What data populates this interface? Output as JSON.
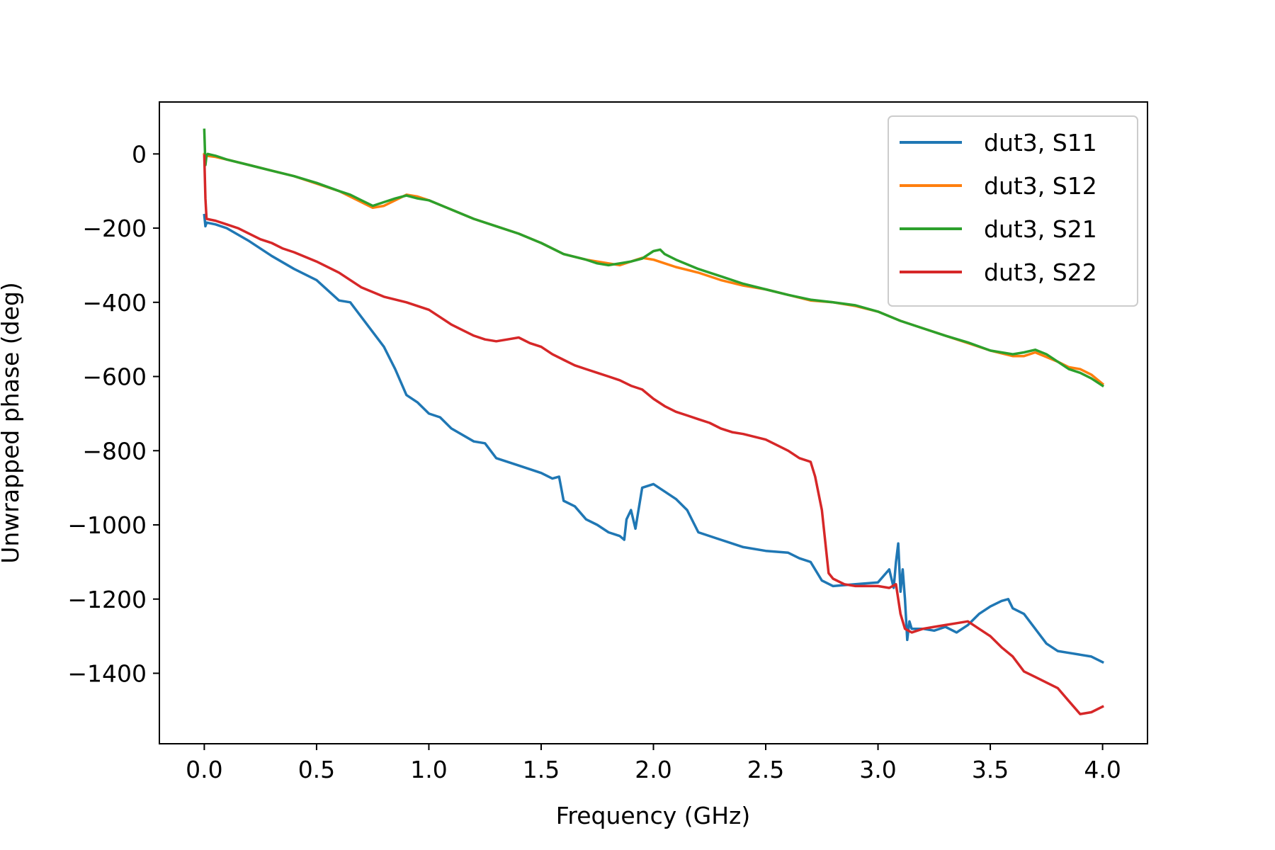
{
  "chart_data": {
    "type": "line",
    "title": "",
    "xlabel": "Frequency (GHz)",
    "ylabel": "Unwrapped phase (deg)",
    "xlim": [
      -0.2,
      4.2
    ],
    "ylim": [
      -1590,
      140
    ],
    "xticks": [
      0.0,
      0.5,
      1.0,
      1.5,
      2.0,
      2.5,
      3.0,
      3.5,
      4.0
    ],
    "xtick_labels": [
      "0.0",
      "0.5",
      "1.0",
      "1.5",
      "2.0",
      "2.5",
      "3.0",
      "3.5",
      "4.0"
    ],
    "yticks": [
      0,
      -200,
      -400,
      -600,
      -800,
      -1000,
      -1200,
      -1400
    ],
    "ytick_labels": [
      "0",
      "−200",
      "−400",
      "−600",
      "−800",
      "−1000",
      "−1200",
      "−1400"
    ],
    "legend_position": "top-right",
    "series": [
      {
        "name": "dut3, S11",
        "color": "#1f77b4",
        "x": [
          0.0,
          0.005,
          0.01,
          0.05,
          0.1,
          0.2,
          0.3,
          0.4,
          0.5,
          0.6,
          0.65,
          0.7,
          0.75,
          0.8,
          0.85,
          0.9,
          0.95,
          1.0,
          1.05,
          1.1,
          1.2,
          1.25,
          1.3,
          1.4,
          1.5,
          1.55,
          1.58,
          1.6,
          1.65,
          1.7,
          1.75,
          1.8,
          1.85,
          1.87,
          1.88,
          1.9,
          1.92,
          1.95,
          2.0,
          2.05,
          2.1,
          2.15,
          2.2,
          2.3,
          2.4,
          2.5,
          2.6,
          2.65,
          2.7,
          2.75,
          2.8,
          2.9,
          3.0,
          3.05,
          3.07,
          3.08,
          3.09,
          3.1,
          3.11,
          3.12,
          3.13,
          3.14,
          3.15,
          3.2,
          3.25,
          3.3,
          3.35,
          3.4,
          3.45,
          3.5,
          3.55,
          3.58,
          3.6,
          3.65,
          3.7,
          3.75,
          3.8,
          3.85,
          3.9,
          3.95,
          4.0
        ],
        "y": [
          -165,
          -195,
          -185,
          -190,
          -200,
          -235,
          -275,
          -310,
          -340,
          -395,
          -400,
          -440,
          -480,
          -520,
          -580,
          -650,
          -670,
          -700,
          -710,
          -740,
          -775,
          -780,
          -820,
          -840,
          -860,
          -875,
          -870,
          -935,
          -950,
          -985,
          -1000,
          -1020,
          -1030,
          -1040,
          -985,
          -960,
          -1010,
          -900,
          -890,
          -910,
          -930,
          -960,
          -1020,
          -1040,
          -1060,
          -1070,
          -1075,
          -1090,
          -1100,
          -1150,
          -1165,
          -1160,
          -1155,
          -1120,
          -1170,
          -1100,
          -1050,
          -1180,
          -1120,
          -1200,
          -1310,
          -1260,
          -1280,
          -1280,
          -1285,
          -1275,
          -1290,
          -1270,
          -1240,
          -1220,
          -1205,
          -1200,
          -1225,
          -1240,
          -1280,
          -1320,
          -1340,
          -1345,
          -1350,
          -1355,
          -1370
        ]
      },
      {
        "name": "dut3, S12",
        "color": "#ff7f0e",
        "x": [
          0.0,
          0.01,
          0.05,
          0.1,
          0.2,
          0.3,
          0.4,
          0.5,
          0.6,
          0.65,
          0.7,
          0.75,
          0.8,
          0.85,
          0.9,
          0.95,
          1.0,
          1.1,
          1.2,
          1.3,
          1.4,
          1.5,
          1.6,
          1.7,
          1.75,
          1.8,
          1.85,
          1.9,
          1.95,
          2.0,
          2.05,
          2.1,
          2.2,
          2.3,
          2.4,
          2.5,
          2.6,
          2.7,
          2.8,
          2.9,
          3.0,
          3.1,
          3.2,
          3.3,
          3.4,
          3.5,
          3.6,
          3.65,
          3.7,
          3.8,
          3.85,
          3.9,
          3.95,
          4.0
        ],
        "y": [
          0,
          -5,
          -8,
          -15,
          -30,
          -45,
          -60,
          -80,
          -100,
          -115,
          -130,
          -145,
          -140,
          -125,
          -110,
          -115,
          -125,
          -150,
          -175,
          -195,
          -215,
          -240,
          -270,
          -285,
          -290,
          -295,
          -300,
          -290,
          -280,
          -285,
          -295,
          -305,
          -320,
          -340,
          -355,
          -365,
          -380,
          -395,
          -400,
          -410,
          -425,
          -450,
          -470,
          -490,
          -510,
          -530,
          -545,
          -545,
          -535,
          -560,
          -575,
          -580,
          -595,
          -620
        ]
      },
      {
        "name": "dut3, S21",
        "color": "#2ca02c",
        "x": [
          0.0,
          0.005,
          0.01,
          0.015,
          0.05,
          0.1,
          0.2,
          0.3,
          0.4,
          0.5,
          0.6,
          0.65,
          0.7,
          0.75,
          0.8,
          0.85,
          0.9,
          0.95,
          1.0,
          1.1,
          1.2,
          1.3,
          1.4,
          1.5,
          1.6,
          1.7,
          1.75,
          1.8,
          1.85,
          1.9,
          1.95,
          2.0,
          2.03,
          2.05,
          2.1,
          2.2,
          2.3,
          2.4,
          2.5,
          2.6,
          2.7,
          2.8,
          2.9,
          3.0,
          3.1,
          3.2,
          3.3,
          3.4,
          3.5,
          3.6,
          3.65,
          3.7,
          3.75,
          3.8,
          3.85,
          3.9,
          3.95,
          4.0
        ],
        "y": [
          65,
          -30,
          -5,
          0,
          -5,
          -15,
          -30,
          -45,
          -60,
          -78,
          -100,
          -110,
          -125,
          -140,
          -130,
          -120,
          -112,
          -120,
          -125,
          -150,
          -175,
          -195,
          -215,
          -240,
          -270,
          -285,
          -295,
          -300,
          -295,
          -290,
          -282,
          -262,
          -258,
          -270,
          -285,
          -310,
          -330,
          -350,
          -365,
          -380,
          -393,
          -400,
          -408,
          -425,
          -450,
          -470,
          -490,
          -508,
          -530,
          -540,
          -535,
          -528,
          -540,
          -560,
          -580,
          -590,
          -605,
          -625
        ]
      },
      {
        "name": "dut3, S22",
        "color": "#d62728",
        "x": [
          0.0,
          0.005,
          0.01,
          0.05,
          0.1,
          0.15,
          0.2,
          0.25,
          0.3,
          0.35,
          0.4,
          0.5,
          0.6,
          0.7,
          0.8,
          0.9,
          1.0,
          1.05,
          1.1,
          1.15,
          1.2,
          1.25,
          1.3,
          1.35,
          1.4,
          1.45,
          1.5,
          1.55,
          1.6,
          1.65,
          1.7,
          1.75,
          1.8,
          1.85,
          1.9,
          1.95,
          2.0,
          2.05,
          2.1,
          2.15,
          2.2,
          2.25,
          2.3,
          2.35,
          2.4,
          2.5,
          2.55,
          2.6,
          2.65,
          2.7,
          2.72,
          2.75,
          2.78,
          2.8,
          2.85,
          2.9,
          3.0,
          3.05,
          3.08,
          3.1,
          3.12,
          3.15,
          3.2,
          3.25,
          3.3,
          3.35,
          3.4,
          3.45,
          3.5,
          3.55,
          3.6,
          3.65,
          3.7,
          3.75,
          3.8,
          3.85,
          3.9,
          3.95,
          4.0
        ],
        "y": [
          -5,
          -120,
          -175,
          -180,
          -190,
          -200,
          -215,
          -230,
          -240,
          -255,
          -265,
          -290,
          -320,
          -360,
          -385,
          -400,
          -420,
          -440,
          -460,
          -475,
          -490,
          -500,
          -505,
          -500,
          -495,
          -510,
          -520,
          -540,
          -555,
          -570,
          -580,
          -590,
          -600,
          -610,
          -625,
          -635,
          -660,
          -680,
          -695,
          -705,
          -715,
          -725,
          -740,
          -750,
          -755,
          -770,
          -785,
          -800,
          -820,
          -830,
          -870,
          -960,
          -1130,
          -1145,
          -1160,
          -1165,
          -1165,
          -1170,
          -1160,
          -1240,
          -1280,
          -1290,
          -1280,
          -1275,
          -1270,
          -1265,
          -1260,
          -1280,
          -1300,
          -1330,
          -1355,
          -1395,
          -1410,
          -1425,
          -1440,
          -1475,
          -1510,
          -1505,
          -1490
        ]
      }
    ]
  }
}
